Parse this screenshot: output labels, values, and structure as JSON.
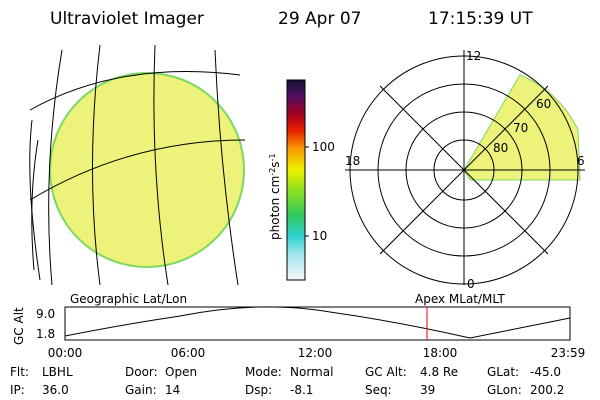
{
  "header": {
    "instrument": "Ultraviolet Imager",
    "date": "29 Apr 07",
    "time": "17:15:39 UT"
  },
  "colorbar": {
    "label": "photon cm",
    "exp1": "-2",
    "unit2": "s",
    "exp2": "-1",
    "ticks": [
      "100",
      "10"
    ]
  },
  "polar": {
    "mlt_labels": [
      "12",
      "18",
      "6",
      "0"
    ],
    "lat_labels": [
      "80",
      "70",
      "60"
    ]
  },
  "panels": {
    "left_label": "Geographic Lat/Lon",
    "right_label": "Apex MLat/MLT"
  },
  "timeline": {
    "ylabel": "GC Alt",
    "yticks": [
      "9.0",
      "1.8"
    ],
    "xticks": [
      "00:00",
      "06:00",
      "12:00",
      "18:00",
      "23:59"
    ]
  },
  "info": [
    [
      [
        "Flt:",
        "LBHL"
      ],
      [
        "Door:",
        "Open"
      ],
      [
        "Mode:",
        "Normal"
      ],
      [
        "GC Alt:",
        "4.8 Re"
      ],
      [
        "GLat:",
        "-45.0"
      ]
    ],
    [
      [
        "IP:",
        "36.0"
      ],
      [
        "Gain:",
        "14"
      ],
      [
        "Dsp:",
        "-8.1"
      ],
      [
        "Seq:",
        "39"
      ],
      [
        "GLon:",
        "200.2"
      ]
    ]
  ]
}
